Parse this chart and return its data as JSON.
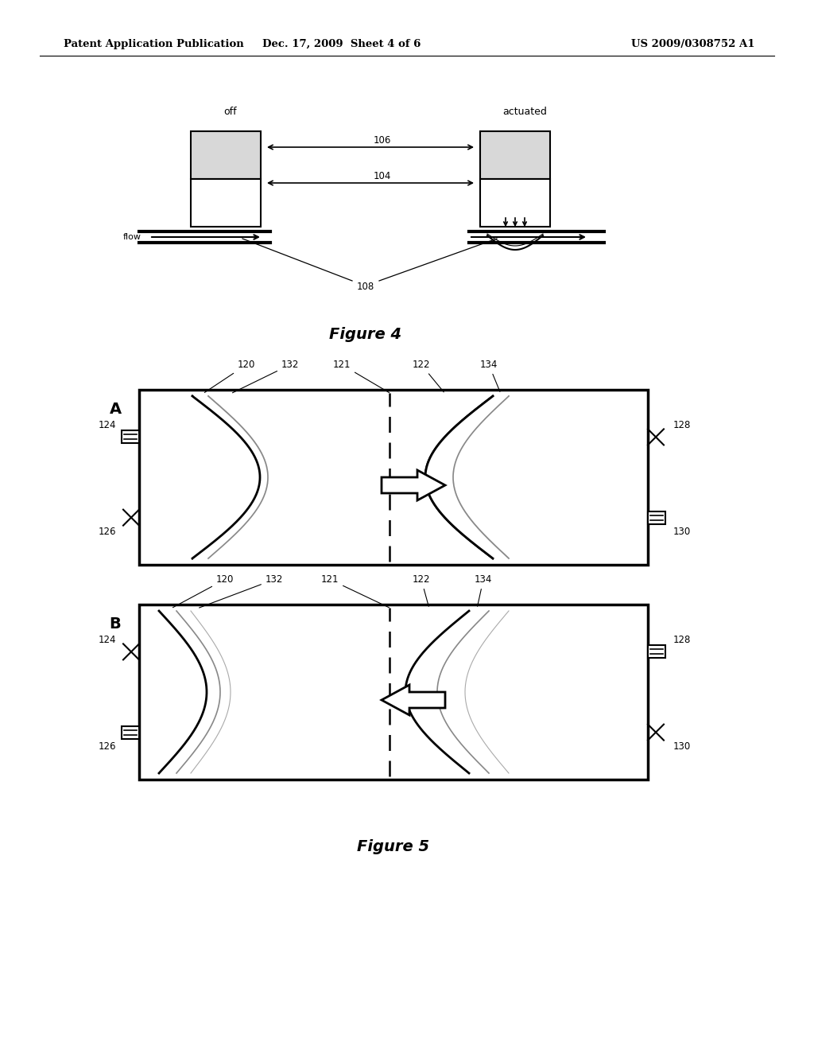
{
  "bg_color": "#ffffff",
  "header_left": "Patent Application Publication",
  "header_mid": "Dec. 17, 2009  Sheet 4 of 6",
  "header_right": "US 2009/0308752 A1",
  "fig4_label": "Figure 4",
  "fig5_label": "Figure 5",
  "fig4_off_label": "off",
  "fig4_actuated_label": "actuated",
  "fig4_flow_label": "flow"
}
